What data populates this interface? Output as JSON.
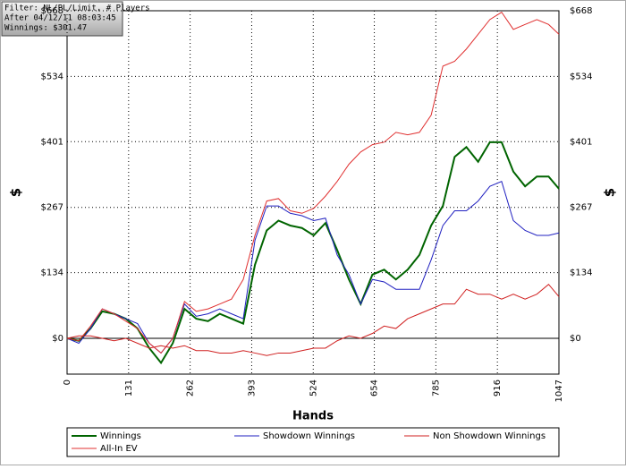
{
  "info": {
    "lines": [
      "Filter: NL/PL/Limit, # Players",
      "After 04/12/11 08:03:45",
      "Winnings: $301.47"
    ]
  },
  "chart_data": {
    "type": "line",
    "ylabel": "$",
    "xlabel": "Hands",
    "xlim": [
      0,
      1047
    ],
    "xticks": [
      0,
      131,
      262,
      393,
      524,
      654,
      785,
      916,
      1047
    ],
    "ylim": [
      -73,
      668
    ],
    "yticks": [
      {
        "value": 0,
        "label": "$0"
      },
      {
        "value": 134,
        "label": "$134"
      },
      {
        "value": 267,
        "label": "$267"
      },
      {
        "value": 401,
        "label": "$401"
      },
      {
        "value": 534,
        "label": "$534"
      },
      {
        "value": 668,
        "label": "$668"
      }
    ],
    "grid": true,
    "x": [
      0,
      25,
      50,
      75,
      100,
      125,
      150,
      175,
      200,
      225,
      250,
      275,
      300,
      325,
      350,
      375,
      400,
      425,
      450,
      475,
      500,
      525,
      550,
      575,
      600,
      625,
      650,
      675,
      700,
      725,
      750,
      775,
      800,
      825,
      850,
      875,
      900,
      925,
      950,
      975,
      1000,
      1025,
      1047
    ],
    "series": [
      {
        "name": "Winnings",
        "color": "#006400",
        "values": [
          0,
          -5,
          20,
          55,
          50,
          40,
          20,
          -20,
          -50,
          -10,
          60,
          40,
          35,
          50,
          40,
          30,
          150,
          220,
          240,
          230,
          225,
          210,
          235,
          180,
          120,
          70,
          130,
          140,
          120,
          140,
          170,
          230,
          270,
          370,
          390,
          360,
          400,
          400,
          340,
          310,
          330,
          330,
          305
        ]
      },
      {
        "name": "Showdown Winnings",
        "color": "#2020c0",
        "values": [
          0,
          -10,
          20,
          60,
          50,
          40,
          30,
          -10,
          -30,
          0,
          70,
          45,
          50,
          60,
          50,
          40,
          200,
          270,
          270,
          255,
          250,
          240,
          245,
          170,
          130,
          70,
          120,
          115,
          100,
          100,
          100,
          160,
          230,
          260,
          260,
          280,
          310,
          320,
          240,
          220,
          210,
          210,
          215
        ]
      },
      {
        "name": "Non Showdown Winnings",
        "color": "#d02020",
        "values": [
          0,
          5,
          5,
          0,
          -5,
          0,
          -10,
          -20,
          -15,
          -20,
          -15,
          -25,
          -25,
          -30,
          -30,
          -25,
          -30,
          -35,
          -30,
          -30,
          -25,
          -20,
          -20,
          -5,
          5,
          0,
          10,
          25,
          20,
          40,
          50,
          60,
          70,
          70,
          100,
          90,
          90,
          80,
          90,
          80,
          90,
          110,
          85
        ]
      },
      {
        "name": "All-In EV",
        "color": "#e03030",
        "values": [
          0,
          -5,
          25,
          60,
          50,
          35,
          20,
          -10,
          -30,
          0,
          75,
          55,
          60,
          70,
          80,
          120,
          210,
          280,
          285,
          260,
          255,
          265,
          290,
          320,
          355,
          380,
          395,
          400,
          420,
          415,
          420,
          455,
          555,
          565,
          590,
          620,
          650,
          665,
          630,
          640,
          650,
          640,
          620
        ]
      }
    ]
  }
}
